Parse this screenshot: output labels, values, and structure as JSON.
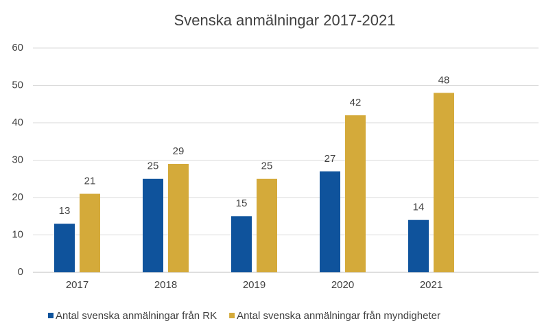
{
  "chart_data": {
    "type": "bar",
    "title": "Svenska anmälningar 2017-2021",
    "categories": [
      "2017",
      "2018",
      "2019",
      "2020",
      "2021"
    ],
    "series": [
      {
        "name": "Antal svenska anmälningar från RK",
        "color": "#0f539c",
        "values": [
          13,
          25,
          15,
          27,
          14
        ]
      },
      {
        "name": "Antal svenska anmälningar från myndigheter",
        "color": "#d4aa3a",
        "values": [
          21,
          29,
          25,
          42,
          48
        ]
      }
    ],
    "ylim": [
      0,
      60
    ],
    "yticks": [
      0,
      10,
      20,
      30,
      40,
      50,
      60
    ],
    "grid": true,
    "legend": "bottom"
  }
}
